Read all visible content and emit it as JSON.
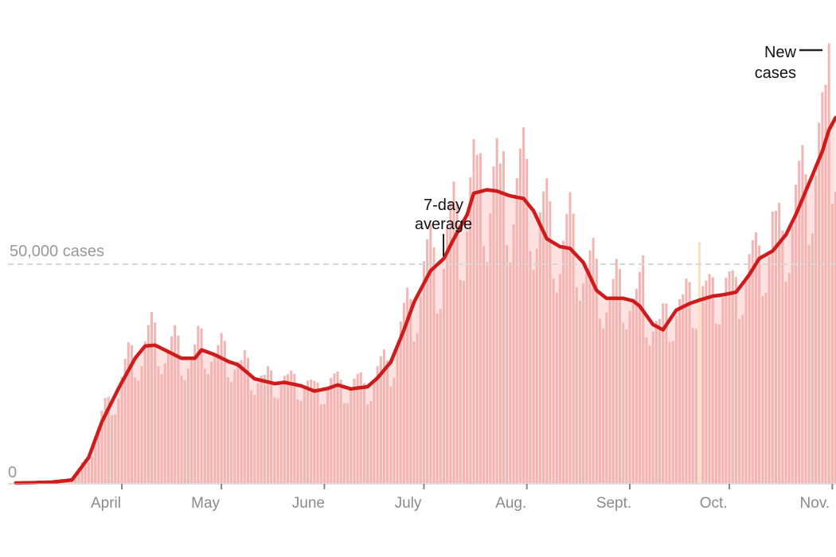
{
  "chart_data": {
    "type": "bar",
    "title": "",
    "xlabel": "",
    "ylabel": "",
    "ylim": [
      0,
      100000
    ],
    "start_date": "Mar. 1",
    "y_ticks": [
      {
        "value": 0,
        "label": "0"
      },
      {
        "value": 50000,
        "label": "50,000 cases"
      }
    ],
    "x_ticks": [
      {
        "day": 31,
        "label": "April"
      },
      {
        "day": 61,
        "label": "May"
      },
      {
        "day": 92,
        "label": "June"
      },
      {
        "day": 122,
        "label": "July"
      },
      {
        "day": 153,
        "label": "Aug."
      },
      {
        "day": 184,
        "label": "Sept."
      },
      {
        "day": 214,
        "label": "Oct."
      },
      {
        "day": 245,
        "label": "Nov."
      }
    ],
    "num_days": 247,
    "seven_day_average": [
      [
        0,
        0
      ],
      [
        10,
        200
      ],
      [
        16,
        700
      ],
      [
        21,
        5800
      ],
      [
        25,
        14000
      ],
      [
        30,
        21600
      ],
      [
        35,
        28500
      ],
      [
        38,
        31300
      ],
      [
        41,
        31500
      ],
      [
        45,
        30000
      ],
      [
        49,
        28500
      ],
      [
        53,
        28500
      ],
      [
        55,
        30400
      ],
      [
        59,
        29300
      ],
      [
        63,
        27800
      ],
      [
        66,
        27000
      ],
      [
        71,
        23800
      ],
      [
        77,
        22700
      ],
      [
        80,
        23000
      ],
      [
        85,
        22200
      ],
      [
        89,
        21000
      ],
      [
        93,
        21600
      ],
      [
        96,
        22400
      ],
      [
        100,
        21500
      ],
      [
        105,
        22000
      ],
      [
        108,
        24000
      ],
      [
        112,
        27600
      ],
      [
        116,
        35000
      ],
      [
        119,
        41300
      ],
      [
        124,
        48500
      ],
      [
        128,
        51300
      ],
      [
        131,
        55800
      ],
      [
        135,
        61300
      ],
      [
        137,
        66200
      ],
      [
        141,
        67000
      ],
      [
        144,
        66700
      ],
      [
        148,
        65600
      ],
      [
        152,
        65000
      ],
      [
        155,
        62200
      ],
      [
        159,
        55800
      ],
      [
        163,
        54000
      ],
      [
        166,
        53600
      ],
      [
        170,
        50400
      ],
      [
        174,
        44000
      ],
      [
        177,
        42200
      ],
      [
        182,
        42200
      ],
      [
        185,
        41600
      ],
      [
        187,
        40400
      ],
      [
        191,
        36200
      ],
      [
        194,
        35000
      ],
      [
        198,
        39500
      ],
      [
        202,
        41000
      ],
      [
        205,
        41800
      ],
      [
        209,
        42700
      ],
      [
        212,
        43000
      ],
      [
        216,
        43600
      ],
      [
        220,
        47600
      ],
      [
        223,
        51300
      ],
      [
        227,
        53000
      ],
      [
        231,
        56700
      ],
      [
        234,
        61300
      ],
      [
        238,
        68500
      ],
      [
        242,
        75800
      ],
      [
        244,
        80700
      ],
      [
        246,
        83500
      ]
    ],
    "weekday_factors": [
      0.82,
      0.8,
      0.93,
      1.05,
      1.12,
      1.18,
      1.1
    ],
    "daily_overrides": [
      {
        "day": 244,
        "value": 100500
      },
      {
        "day": 243,
        "value": 91000
      },
      {
        "day": 205,
        "value": 55000,
        "highlight": true
      },
      {
        "day": 188,
        "value": 52000
      },
      {
        "day": 138,
        "value": 75000
      },
      {
        "day": 145,
        "value": 73000
      },
      {
        "day": 227,
        "value": 62000
      }
    ],
    "series": [
      {
        "name": "New cases",
        "color": "#f4b4b1"
      },
      {
        "name": "7-day average",
        "color": "#cf1b1b"
      }
    ],
    "annotations": [
      {
        "lines": [
          "7-day",
          "average"
        ],
        "day": 127
      },
      {
        "lines": [
          "New",
          "cases"
        ],
        "day": 244
      }
    ],
    "colors": {
      "bar": "#f4b4b1",
      "area": "#fde2e1",
      "line": "#cf1b1b",
      "highlight": "#fbe2b8",
      "grid": "#d9d9d9"
    }
  }
}
